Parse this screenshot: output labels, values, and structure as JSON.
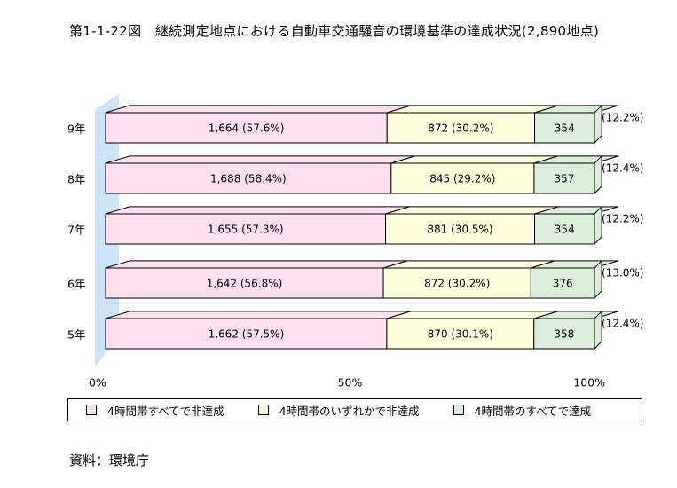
{
  "title": "第1-1-22図　継続測定地点における自動車交通騒音の環境基準の達成状況(2,890地点)",
  "source": "資料：環境庁",
  "chart_data": {
    "type": "bar",
    "orientation": "horizontal",
    "stacked": "100%",
    "categories": [
      "9年",
      "8年",
      "7年",
      "6年",
      "5年"
    ],
    "series": [
      {
        "name": "4時間帯すべてで非達成",
        "color": "#ffe0ee",
        "values": [
          1664,
          1688,
          1655,
          1642,
          1662
        ],
        "labels": [
          "1,664 (57.6%)",
          "1,688 (58.4%)",
          "1,655 (57.3%)",
          "1,642 (56.8%)",
          "1,662 (57.5%)"
        ]
      },
      {
        "name": "4時間帯のいずれかで非達成",
        "color": "#ffffdd",
        "values": [
          872,
          845,
          881,
          872,
          870
        ],
        "labels": [
          "872 (30.2%)",
          "845 (29.2%)",
          "881 (30.5%)",
          "872 (30.2%)",
          "870 (30.1%)"
        ]
      },
      {
        "name": "4時間帯のすべてで達成",
        "color": "#ddeedd",
        "values": [
          354,
          357,
          354,
          376,
          358
        ],
        "labels": [
          "354",
          "357",
          "354",
          "376",
          "358"
        ],
        "outside_labels": [
          "(12.2%)",
          "(12.4%)",
          "(12.2%)",
          "(13.0%)",
          "(12.4%)"
        ]
      }
    ],
    "x_ticks": [
      "0%",
      "50%",
      "100%"
    ],
    "xlim": [
      0,
      100
    ],
    "legend_position": "bottom",
    "wall_color": "#cce4f7",
    "grid": false
  }
}
